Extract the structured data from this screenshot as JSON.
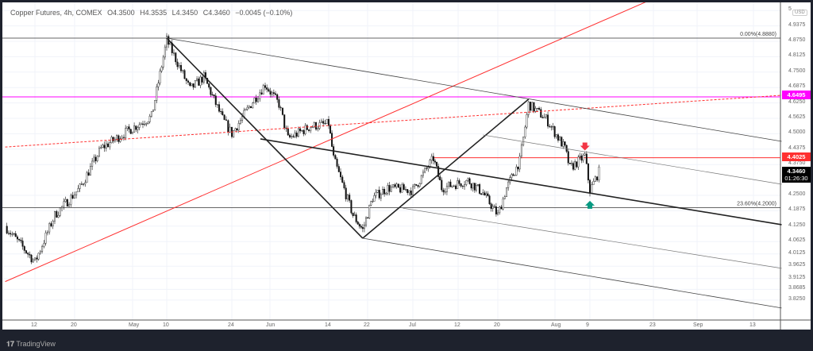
{
  "header": {
    "symbol": "Copper Futures, 4h, COMEX",
    "open": "O4.3500",
    "high": "H4.3535",
    "low": "L4.3450",
    "close": "C4.3460",
    "change": "−0.0045 (−0.10%)"
  },
  "currency": "USD",
  "brand": "TradingView",
  "price_labels": {
    "magenta": "4.6495",
    "red": "4.4025",
    "last": "4.3460",
    "countdown": "01:26:30"
  },
  "colors": {
    "magenta": "#ff00ff",
    "red": "#ff3030",
    "up_arrow": "#089981",
    "down_arrow": "#f23645"
  },
  "chart_data": {
    "type": "candlestick",
    "title": "Copper Futures, 4h, COMEX",
    "ylim": [
      3.8,
      5.04
    ],
    "y_ticks": [
      "5",
      "4.9375",
      "4.8750",
      "4.8125",
      "4.7500",
      "4.6875",
      "4.6250",
      "4.5625",
      "4.5000",
      "4.4375",
      "4.3750",
      "4.2500",
      "4.1875",
      "4.1250",
      "4.0625",
      "4.0125",
      "3.9625",
      "3.9125",
      "3.8685",
      "3.8250"
    ],
    "x_ticks": [
      [
        "12",
        "2021-04-12"
      ],
      [
        "20",
        "2021-04-20"
      ],
      [
        "May",
        "2021-05-01"
      ],
      [
        "10",
        "2021-05-10"
      ],
      [
        "24",
        "2021-05-24"
      ],
      [
        "Jun",
        "2021-06-01"
      ],
      [
        "14",
        "2021-06-14"
      ],
      [
        "22",
        "2021-06-22"
      ],
      [
        "Jul",
        "2021-07-01"
      ],
      [
        "12",
        "2021-07-12"
      ],
      [
        "20",
        "2021-07-20"
      ],
      [
        "Aug",
        "2021-08-02"
      ],
      [
        "9",
        "2021-08-09"
      ],
      [
        "23",
        "2021-08-23"
      ],
      [
        "Sep",
        "2021-09-01"
      ],
      [
        "13",
        "2021-09-13"
      ]
    ],
    "price_path": [
      [
        "2021-04-06",
        4.125
      ],
      [
        "2021-04-12",
        3.98
      ],
      [
        "2021-04-16",
        4.17
      ],
      [
        "2021-04-21",
        4.28
      ],
      [
        "2021-04-25",
        4.44
      ],
      [
        "2021-04-30",
        4.51
      ],
      [
        "2021-05-06",
        4.57
      ],
      [
        "2021-05-10",
        4.88
      ],
      [
        "2021-05-15",
        4.68
      ],
      [
        "2021-05-18",
        4.73
      ],
      [
        "2021-05-22",
        4.56
      ],
      [
        "2021-05-24",
        4.5
      ],
      [
        "2021-05-28",
        4.62
      ],
      [
        "2021-05-31",
        4.7
      ],
      [
        "2021-06-03",
        4.62
      ],
      [
        "2021-06-05",
        4.48
      ],
      [
        "2021-06-10",
        4.53
      ],
      [
        "2021-06-14",
        4.54
      ],
      [
        "2021-06-15",
        4.4
      ],
      [
        "2021-06-19",
        4.17
      ],
      [
        "2021-06-21",
        4.11
      ],
      [
        "2021-06-23",
        4.24
      ],
      [
        "2021-06-26",
        4.28
      ],
      [
        "2021-07-01",
        4.27
      ],
      [
        "2021-07-06",
        4.4
      ],
      [
        "2021-07-08",
        4.28
      ],
      [
        "2021-07-14",
        4.31
      ],
      [
        "2021-07-17",
        4.26
      ],
      [
        "2021-07-20",
        4.17
      ],
      [
        "2021-07-22",
        4.28
      ],
      [
        "2021-07-25",
        4.39
      ],
      [
        "2021-07-27",
        4.62
      ],
      [
        "2021-07-31",
        4.56
      ],
      [
        "2021-08-04",
        4.44
      ],
      [
        "2021-08-05",
        4.36
      ],
      [
        "2021-08-08",
        4.41
      ],
      [
        "2021-08-09",
        4.27
      ],
      [
        "2021-08-11",
        4.346
      ]
    ],
    "horizontal_levels": [
      {
        "price": 4.888,
        "label": "0.00%(4.8880)",
        "color": "#333333"
      },
      {
        "price": 4.2,
        "label": "23.60%(4.2000)",
        "color": "#333333"
      },
      {
        "price": 4.6495,
        "color": "#ff00ff"
      },
      {
        "price": 4.4025,
        "color": "#ff3030",
        "from": "2021-07-06"
      }
    ],
    "trendlines": [
      {
        "from": [
          "2021-04-06",
          3.9
        ],
        "to": [
          "2021-08-22",
          5.04
        ],
        "color": "#ff3030",
        "width": 1
      },
      {
        "from": [
          "2021-04-06",
          4.446
        ],
        "to": [
          "2021-09-19",
          4.656
        ],
        "color": "#ff3030",
        "width": 1,
        "dash": true
      },
      {
        "from": [
          "2021-05-10",
          4.888
        ],
        "to": [
          "2021-06-21",
          4.076
        ],
        "color": "#222222",
        "width": 1.6
      },
      {
        "from": [
          "2021-06-21",
          4.076
        ],
        "to": [
          "2021-07-27",
          4.64
        ],
        "color": "#222222",
        "width": 1.6
      },
      {
        "from": [
          "2021-05-30",
          4.479
        ],
        "to": [
          "2021-09-19",
          4.131
        ],
        "color": "#222222",
        "width": 1.6
      },
      {
        "from": [
          "2021-05-10",
          4.888
        ],
        "to": [
          "2021-09-19",
          4.469
        ],
        "color": "#444444",
        "width": 0.8
      },
      {
        "from": [
          "2021-07-17",
          4.495
        ],
        "to": [
          "2021-09-19",
          4.295
        ],
        "color": "#777777",
        "width": 0.7
      },
      {
        "from": [
          "2021-06-29",
          4.198
        ],
        "to": [
          "2021-09-19",
          3.954
        ],
        "color": "#777777",
        "width": 0.7
      },
      {
        "from": [
          "2021-06-21",
          4.076
        ],
        "to": [
          "2021-09-19",
          3.793
        ],
        "color": "#444444",
        "width": 0.8
      }
    ],
    "markers": [
      {
        "date": "2021-08-08",
        "price": 4.445,
        "type": "arrow-down",
        "color": "#f23645"
      },
      {
        "date": "2021-08-09",
        "price": 4.215,
        "type": "arrow-up",
        "color": "#089981"
      }
    ]
  }
}
